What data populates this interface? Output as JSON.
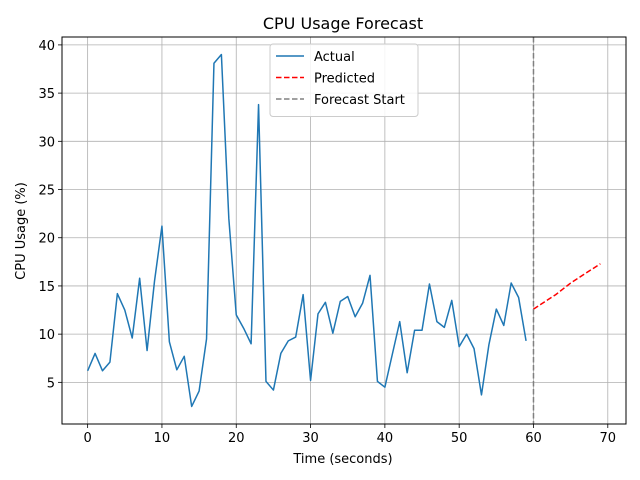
{
  "chart_data": {
    "type": "line",
    "title": "CPU Usage Forecast",
    "xlabel": "Time (seconds)",
    "ylabel": "CPU Usage (%)",
    "xlim": [
      -3.45,
      72.45
    ],
    "ylim": [
      0.68,
      40.82
    ],
    "xticks": [
      0,
      10,
      20,
      30,
      40,
      50,
      60,
      70
    ],
    "yticks": [
      5,
      10,
      15,
      20,
      25,
      30,
      35,
      40
    ],
    "grid": true,
    "legend_position": "upper center",
    "series": [
      {
        "name": "Actual",
        "style": "solid",
        "color": "#1f77b4",
        "x": [
          0,
          1,
          2,
          3,
          4,
          5,
          6,
          7,
          8,
          9,
          10,
          11,
          12,
          13,
          14,
          15,
          16,
          17,
          18,
          19,
          20,
          21,
          22,
          23,
          24,
          25,
          26,
          27,
          28,
          29,
          30,
          31,
          32,
          33,
          34,
          35,
          36,
          37,
          38,
          39,
          40,
          41,
          42,
          43,
          44,
          45,
          46,
          47,
          48,
          49,
          50,
          51,
          52,
          53,
          54,
          55,
          56,
          57,
          58,
          59
        ],
        "values": [
          6.2,
          8.0,
          6.2,
          7.1,
          14.2,
          12.5,
          9.6,
          15.8,
          8.3,
          15.5,
          21.2,
          9.2,
          6.3,
          7.7,
          2.5,
          4.1,
          9.5,
          38.1,
          39.0,
          22.0,
          12.0,
          10.6,
          9.0,
          33.8,
          5.1,
          4.2,
          8.0,
          9.3,
          9.7,
          14.1,
          5.2,
          12.1,
          13.3,
          10.1,
          13.4,
          13.9,
          11.8,
          13.2,
          16.1,
          5.1,
          4.5,
          7.9,
          11.3,
          6.0,
          10.4,
          10.4,
          15.2,
          11.3,
          10.7,
          13.5,
          8.7,
          10.0,
          8.5,
          3.7,
          8.9,
          12.6,
          10.9,
          15.3,
          13.8,
          9.3
        ]
      },
      {
        "name": "Predicted",
        "style": "dashed",
        "color": "#ff0000",
        "x": [
          60,
          61,
          62,
          63,
          64,
          65,
          66,
          67,
          68,
          69
        ],
        "values": [
          12.6,
          13.1,
          13.6,
          14.1,
          14.7,
          15.3,
          15.8,
          16.3,
          16.8,
          17.3
        ]
      }
    ],
    "vlines": [
      {
        "name": "Forecast Start",
        "x": 60,
        "style": "dashed",
        "color": "#808080"
      }
    ]
  }
}
